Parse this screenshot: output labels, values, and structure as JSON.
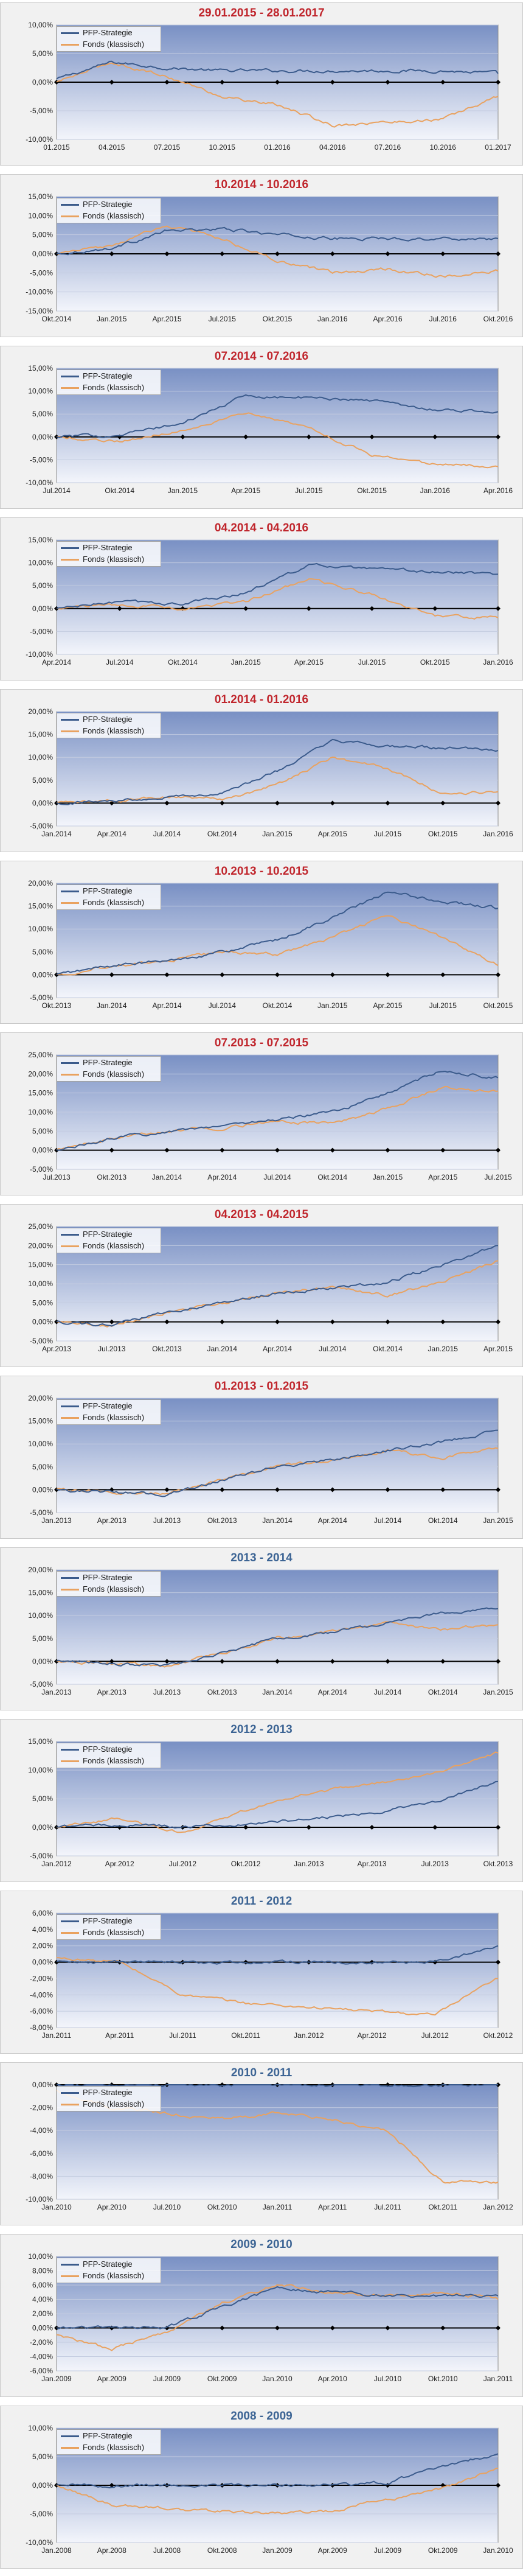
{
  "legend": {
    "strategy": "PFP-Strategie",
    "fund": "Fonds (klassisch)"
  },
  "colors": {
    "strategy": "#3b5b8c",
    "fund": "#e9a260",
    "title_red": "#c0262d",
    "title_blue": "#3c6494",
    "zero_line": "#000000"
  },
  "chart_data": [
    {
      "type": "line",
      "title": "29.01.2015 - 28.01.2017",
      "title_color": "red",
      "x": [
        "01.2015",
        "04.2015",
        "07.2015",
        "10.2015",
        "01.2016",
        "04.2016",
        "07.2016",
        "10.2016",
        "01.2017"
      ],
      "yticks": [
        10,
        5,
        0,
        -5,
        -10
      ],
      "ylim": [
        -10,
        10
      ],
      "series": [
        {
          "name": "PFP-Strategie",
          "values": [
            0.5,
            3.5,
            2.5,
            2.0,
            2.0,
            2.0,
            2.0,
            2.0,
            1.5
          ]
        },
        {
          "name": "Fonds (klassisch)",
          "values": [
            0.0,
            3.5,
            1.0,
            -2.5,
            -4.0,
            -7.5,
            -7.0,
            -6.5,
            -2.5
          ]
        }
      ]
    },
    {
      "type": "line",
      "title": "10.2014 - 10.2016",
      "title_color": "red",
      "x": [
        "Okt.2014",
        "Jan.2015",
        "Apr.2015",
        "Jul.2015",
        "Okt.2015",
        "Jan.2016",
        "Apr.2016",
        "Jul.2016",
        "Okt.2016"
      ],
      "yticks": [
        15,
        10,
        5,
        0,
        -5,
        -10,
        -15
      ],
      "ylim": [
        -15,
        15
      ],
      "series": [
        {
          "name": "PFP-Strategie",
          "values": [
            0.0,
            1.5,
            6.0,
            6.5,
            5.0,
            4.0,
            4.0,
            4.0,
            4.0
          ]
        },
        {
          "name": "Fonds (klassisch)",
          "values": [
            0.0,
            2.0,
            7.5,
            4.0,
            -2.0,
            -5.0,
            -4.0,
            -6.0,
            -4.5
          ]
        }
      ]
    },
    {
      "type": "line",
      "title": "07.2014 - 07.2016",
      "title_color": "red",
      "x": [
        "Jul.2014",
        "Okt.2014",
        "Jan.2015",
        "Apr.2015",
        "Jul.2015",
        "Okt.2015",
        "Jan.2016",
        "Apr.2016"
      ],
      "yticks": [
        15,
        10,
        5,
        0,
        -5,
        -10
      ],
      "ylim": [
        -10,
        15
      ],
      "series": [
        {
          "name": "PFP-Strategie",
          "values": [
            0.0,
            0.5,
            3.0,
            9.0,
            8.5,
            8.0,
            6.0,
            5.5
          ]
        },
        {
          "name": "Fonds (klassisch)",
          "values": [
            0.0,
            -1.0,
            1.5,
            5.5,
            2.0,
            -4.0,
            -6.0,
            -6.5
          ]
        }
      ]
    },
    {
      "type": "line",
      "title": "04.2014 - 04.2016",
      "title_color": "red",
      "x": [
        "Apr.2014",
        "Jul.2014",
        "Okt.2014",
        "Jan.2015",
        "Apr.2015",
        "Jul.2015",
        "Okt.2015",
        "Jan.2016"
      ],
      "yticks": [
        15,
        10,
        5,
        0,
        -5,
        -10
      ],
      "ylim": [
        -10,
        15
      ],
      "series": [
        {
          "name": "PFP-Strategie",
          "values": [
            0.0,
            1.5,
            1.0,
            3.5,
            9.5,
            8.5,
            8.0,
            7.5
          ]
        },
        {
          "name": "Fonds (klassisch)",
          "values": [
            0.0,
            1.0,
            0.0,
            1.5,
            6.5,
            3.0,
            -1.5,
            -2.0
          ]
        }
      ]
    },
    {
      "type": "line",
      "title": "01.2014 - 01.2016",
      "title_color": "red",
      "x": [
        "Jan.2014",
        "Apr.2014",
        "Jul.2014",
        "Okt.2014",
        "Jan.2015",
        "Apr.2015",
        "Jul.2015",
        "Okt.2015",
        "Jan.2016"
      ],
      "yticks": [
        20,
        15,
        10,
        5,
        0,
        -5
      ],
      "ylim": [
        -5,
        20
      ],
      "series": [
        {
          "name": "PFP-Strategie",
          "values": [
            0.0,
            0.5,
            1.5,
            2.0,
            7.0,
            13.5,
            12.5,
            12.0,
            11.5
          ]
        },
        {
          "name": "Fonds (klassisch)",
          "values": [
            0.0,
            0.5,
            1.5,
            1.0,
            4.0,
            10.0,
            7.5,
            2.0,
            2.5
          ]
        }
      ]
    },
    {
      "type": "line",
      "title": "10.2013 - 10.2015",
      "title_color": "red",
      "x": [
        "Okt.2013",
        "Jan.2014",
        "Apr.2014",
        "Jul.2014",
        "Okt.2014",
        "Jan.2015",
        "Apr.2015",
        "Jul.2015",
        "Okt.2015"
      ],
      "yticks": [
        20,
        15,
        10,
        5,
        0,
        -5
      ],
      "ylim": [
        -5,
        20
      ],
      "series": [
        {
          "name": "PFP-Strategie",
          "values": [
            0.0,
            2.0,
            3.0,
            5.0,
            7.5,
            12.5,
            18.0,
            16.0,
            14.5
          ]
        },
        {
          "name": "Fonds (klassisch)",
          "values": [
            0.0,
            2.0,
            3.0,
            5.0,
            4.5,
            8.0,
            13.0,
            8.0,
            2.0
          ]
        }
      ]
    },
    {
      "type": "line",
      "title": "07.2013 - 07.2015",
      "title_color": "red",
      "x": [
        "Jul.2013",
        "Okt.2013",
        "Jan.2014",
        "Apr.2014",
        "Jul.2014",
        "Okt.2014",
        "Jan.2015",
        "Apr.2015",
        "Jul.2015"
      ],
      "yticks": [
        25,
        20,
        15,
        10,
        5,
        0,
        -5
      ],
      "ylim": [
        -5,
        25
      ],
      "series": [
        {
          "name": "PFP-Strategie",
          "values": [
            0.0,
            3.0,
            5.0,
            6.5,
            8.0,
            10.0,
            15.0,
            21.0,
            19.0
          ]
        },
        {
          "name": "Fonds (klassisch)",
          "values": [
            0.0,
            3.0,
            5.0,
            6.0,
            7.5,
            7.0,
            11.0,
            16.5,
            15.5
          ]
        }
      ]
    },
    {
      "type": "line",
      "title": "04.2013 - 04.2015",
      "title_color": "red",
      "x": [
        "Apr.2013",
        "Jul.2013",
        "Okt.2013",
        "Jan.2014",
        "Apr.2014",
        "Jul.2014",
        "Okt.2014",
        "Jan.2015",
        "Apr.2015"
      ],
      "yticks": [
        25,
        20,
        15,
        10,
        5,
        0,
        -5
      ],
      "ylim": [
        -5,
        25
      ],
      "series": [
        {
          "name": "PFP-Strategie",
          "values": [
            0.0,
            -1.0,
            2.5,
            5.0,
            7.5,
            9.0,
            10.5,
            15.0,
            20.0
          ]
        },
        {
          "name": "Fonds (klassisch)",
          "values": [
            0.0,
            -1.0,
            2.5,
            5.0,
            7.5,
            9.0,
            7.0,
            10.5,
            16.0
          ]
        }
      ]
    },
    {
      "type": "line",
      "title": "01.2013 - 01.2015",
      "title_color": "red",
      "x": [
        "Jan.2013",
        "Apr.2013",
        "Jul.2013",
        "Okt.2013",
        "Jan.2014",
        "Apr.2014",
        "Jul.2014",
        "Okt.2014",
        "Jan.2015"
      ],
      "yticks": [
        20,
        15,
        10,
        5,
        0,
        -5
      ],
      "ylim": [
        -5,
        20
      ],
      "series": [
        {
          "name": "PFP-Strategie",
          "values": [
            0.0,
            -0.5,
            -1.0,
            2.0,
            5.0,
            6.5,
            8.5,
            10.5,
            13.0
          ]
        },
        {
          "name": "Fonds (klassisch)",
          "values": [
            0.0,
            -0.5,
            -1.0,
            2.0,
            5.0,
            6.5,
            8.5,
            7.0,
            9.0
          ]
        }
      ]
    },
    {
      "type": "line",
      "title": "2013 - 2014",
      "title_color": "blue",
      "x": [
        "Jan.2013",
        "Apr.2013",
        "Jul.2013",
        "Okt.2013",
        "Jan.2014",
        "Apr.2014",
        "Jul.2014",
        "Okt.2014",
        "Jan.2015"
      ],
      "yticks": [
        20,
        15,
        10,
        5,
        0,
        -5
      ],
      "ylim": [
        -5,
        20
      ],
      "series": [
        {
          "name": "PFP-Strategie",
          "values": [
            0.0,
            -0.5,
            -1.0,
            2.0,
            5.0,
            6.5,
            8.5,
            10.5,
            11.5
          ]
        },
        {
          "name": "Fonds (klassisch)",
          "values": [
            0.0,
            -0.5,
            -1.0,
            2.0,
            5.0,
            6.5,
            8.5,
            7.0,
            8.0
          ]
        }
      ]
    },
    {
      "type": "line",
      "title": "2012 - 2013",
      "title_color": "blue",
      "x": [
        "Jan.2012",
        "Apr.2012",
        "Jul.2012",
        "Okt.2012",
        "Jan.2013",
        "Apr.2013",
        "Jul.2013",
        "Okt.2013"
      ],
      "yticks": [
        15,
        10,
        5,
        0,
        -5
      ],
      "ylim": [
        -5,
        15
      ],
      "series": [
        {
          "name": "PFP-Strategie",
          "values": [
            0.0,
            0.5,
            0.0,
            0.5,
            1.5,
            2.5,
            4.5,
            8.0
          ]
        },
        {
          "name": "Fonds (klassisch)",
          "values": [
            0.0,
            1.5,
            -1.0,
            3.0,
            6.0,
            7.5,
            9.5,
            13.0
          ]
        }
      ]
    },
    {
      "type": "line",
      "title": "2011 - 2012",
      "title_color": "blue",
      "x": [
        "Jan.2011",
        "Apr.2011",
        "Jul.2011",
        "Okt.2011",
        "Jan.2012",
        "Apr.2012",
        "Jul.2012",
        "Okt.2012"
      ],
      "yticks": [
        6,
        4,
        2,
        0,
        -2,
        -4,
        -6,
        -8
      ],
      "ylim": [
        -8,
        6
      ],
      "series": [
        {
          "name": "PFP-Strategie",
          "values": [
            0.0,
            0.0,
            0.0,
            0.0,
            0.0,
            0.0,
            0.0,
            2.0
          ]
        },
        {
          "name": "Fonds (klassisch)",
          "values": [
            0.5,
            0.0,
            -4.0,
            -5.0,
            -5.5,
            -6.0,
            -6.5,
            -2.0
          ]
        }
      ]
    },
    {
      "type": "line",
      "title": "2010 - 2011",
      "title_color": "blue",
      "x": [
        "Jan.2010",
        "Apr.2010",
        "Jul.2010",
        "Okt.2010",
        "Jan.2011",
        "Apr.2011",
        "Jul.2011",
        "Okt.2011",
        "Jan.2012"
      ],
      "yticks": [
        0,
        -2,
        -4,
        -6,
        -8,
        -10
      ],
      "ylim": [
        -10,
        0
      ],
      "series": [
        {
          "name": "PFP-Strategie",
          "values": [
            0.0,
            0.0,
            0.0,
            0.0,
            0.0,
            0.0,
            0.0,
            0.0,
            0.0
          ]
        },
        {
          "name": "Fonds (klassisch)",
          "values": [
            -0.5,
            -2.0,
            -2.5,
            -3.0,
            -2.5,
            -3.0,
            -4.0,
            -8.5,
            -8.5
          ]
        }
      ]
    },
    {
      "type": "line",
      "title": "2009 - 2010",
      "title_color": "blue",
      "x": [
        "Jan.2009",
        "Apr.2009",
        "Jul.2009",
        "Okt.2009",
        "Jan.2010",
        "Apr.2010",
        "Jul.2010",
        "Okt.2010",
        "Jan.2011"
      ],
      "yticks": [
        10,
        8,
        6,
        4,
        2,
        0,
        -2,
        -4,
        -6
      ],
      "ylim": [
        -6,
        10
      ],
      "series": [
        {
          "name": "PFP-Strategie",
          "values": [
            0.0,
            0.0,
            0.0,
            3.0,
            5.5,
            5.0,
            4.5,
            4.5,
            4.5
          ]
        },
        {
          "name": "Fonds (klassisch)",
          "values": [
            -1.0,
            -3.0,
            -0.5,
            3.5,
            6.0,
            5.0,
            4.5,
            5.0,
            4.0
          ]
        }
      ]
    },
    {
      "type": "line",
      "title": "2008 - 2009",
      "title_color": "blue",
      "x": [
        "Jan.2008",
        "Apr.2008",
        "Jul.2008",
        "Okt.2008",
        "Jan.2009",
        "Apr.2009",
        "Jul.2009",
        "Okt.2009",
        "Jan.2010"
      ],
      "yticks": [
        10,
        5,
        0,
        -5,
        -10
      ],
      "ylim": [
        -10,
        10
      ],
      "series": [
        {
          "name": "PFP-Strategie",
          "values": [
            0.0,
            0.0,
            0.0,
            0.0,
            0.0,
            0.0,
            0.5,
            3.5,
            5.5
          ]
        },
        {
          "name": "Fonds (klassisch)",
          "values": [
            0.0,
            -3.5,
            -4.0,
            -4.5,
            -5.0,
            -4.5,
            -2.5,
            -0.5,
            3.0
          ]
        }
      ]
    }
  ]
}
